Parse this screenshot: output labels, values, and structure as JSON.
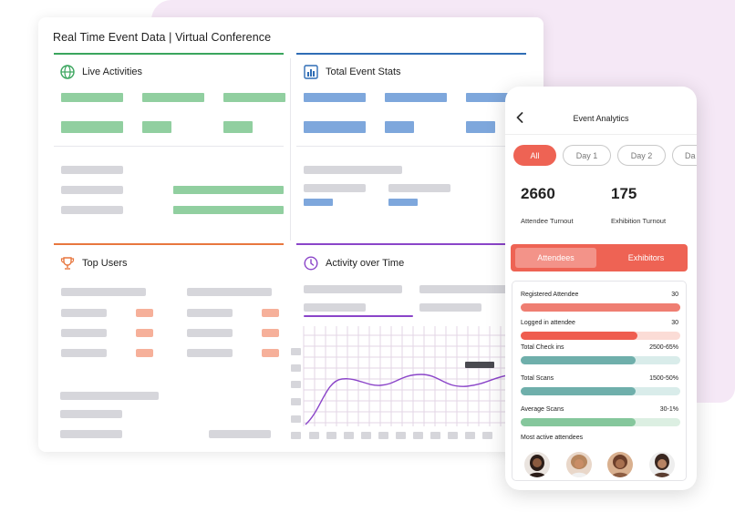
{
  "dashboard": {
    "title": "Real Time Event Data | Virtual Conference",
    "sections": {
      "live_activities": "Live Activities",
      "total_event_stats": "Total Event Stats",
      "top_users": "Top Users",
      "activity_over_time": "Activity over Time"
    },
    "colors": {
      "live": "#3aa55d",
      "stats": "#2f6db5",
      "users": "#e8773f",
      "activity": "#8b45c9"
    },
    "icons": {
      "live": "globe-icon",
      "stats": "bar-chart-icon",
      "users": "trophy-icon",
      "activity": "clock-icon"
    }
  },
  "phone": {
    "back_icon": "chevron-left-icon",
    "title": "Event Analytics",
    "filters": [
      "All",
      "Day 1",
      "Day 2",
      "Da"
    ],
    "active_filter": "All",
    "stats": [
      {
        "value": "2660",
        "label": "Attendee Turnout"
      },
      {
        "value": "175",
        "label": "Exhibition Turnout"
      }
    ],
    "tabs": {
      "active": "Attendees",
      "inactive": "Exhibitors"
    },
    "metrics": [
      {
        "label": "Registered Attendee",
        "value": "30",
        "fill": 1.0,
        "color": "#ef7e72",
        "track": "#f8d3cc"
      },
      {
        "label": "Logged in attendee",
        "value": "30",
        "fill": 0.73,
        "color": "#ef5d4f",
        "track": "#fbdcd6"
      },
      {
        "label": "Total Check ins",
        "value": "2500-65%",
        "fill": 0.72,
        "color": "#6fafab",
        "track": "#d9ecea"
      },
      {
        "label": "Total Scans",
        "value": "1500-50%",
        "fill": 0.72,
        "color": "#6fafab",
        "track": "#d9ecea"
      },
      {
        "label": "Average Scans",
        "value": "30-1%",
        "fill": 0.72,
        "color": "#85c79c",
        "track": "#dcefe2"
      }
    ],
    "most_active_label": "Most active attendees"
  }
}
